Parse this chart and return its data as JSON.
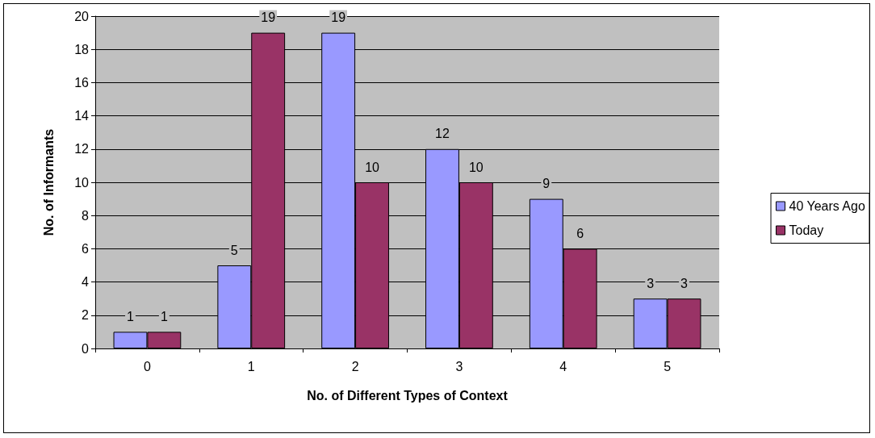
{
  "chart_data": {
    "type": "bar",
    "xlabel": "No. of Different Types of Context",
    "ylabel": "No. of Informants",
    "categories": [
      "0",
      "1",
      "2",
      "3",
      "4",
      "5"
    ],
    "series": [
      {
        "name": "40 Years Ago",
        "color": "#9999ff",
        "values": [
          1,
          5,
          19,
          12,
          9,
          3
        ]
      },
      {
        "name": "Today",
        "color": "#993366",
        "values": [
          1,
          19,
          10,
          10,
          6,
          3
        ]
      }
    ],
    "ylim": [
      0,
      20
    ],
    "yticks": [
      0,
      2,
      4,
      6,
      8,
      10,
      12,
      14,
      16,
      18,
      20
    ],
    "grid": "y",
    "legend": "right",
    "data_labels": true
  }
}
